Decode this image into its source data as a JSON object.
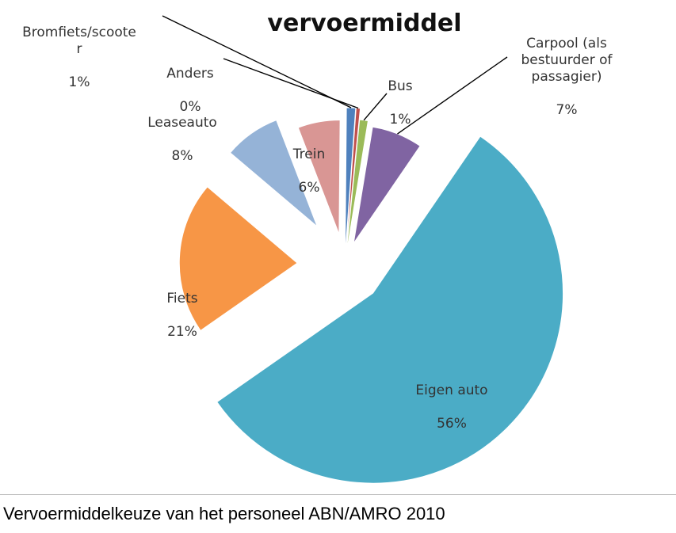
{
  "caption": "Vervoermiddelkeuze van het personeel ABN/AMRO 2010",
  "chart_data": {
    "type": "pie",
    "title": "vervoermiddel",
    "exploded": true,
    "slices": [
      {
        "label": "Bromfiets/scoote\nr",
        "value": 1,
        "display": "1%",
        "color": "#4f81bd"
      },
      {
        "label": "Anders",
        "value": 0,
        "display": "0%",
        "color": "#c0504d"
      },
      {
        "label": "Bus",
        "value": 1,
        "display": "1%",
        "color": "#9bbb59"
      },
      {
        "label": "Carpool (als\nbestuurder of\npassagier)",
        "value": 7,
        "display": "7%",
        "color": "#8064a2"
      },
      {
        "label": "Eigen auto",
        "value": 56,
        "display": "56%",
        "color": "#4bacc6"
      },
      {
        "label": "Fiets",
        "value": 21,
        "display": "21%",
        "color": "#f79646"
      },
      {
        "label": "Leaseauto",
        "value": 8,
        "display": "8%",
        "color": "#95b3d7"
      },
      {
        "label": "Trein",
        "value": 6,
        "display": "6%",
        "color": "#d99694"
      }
    ]
  }
}
